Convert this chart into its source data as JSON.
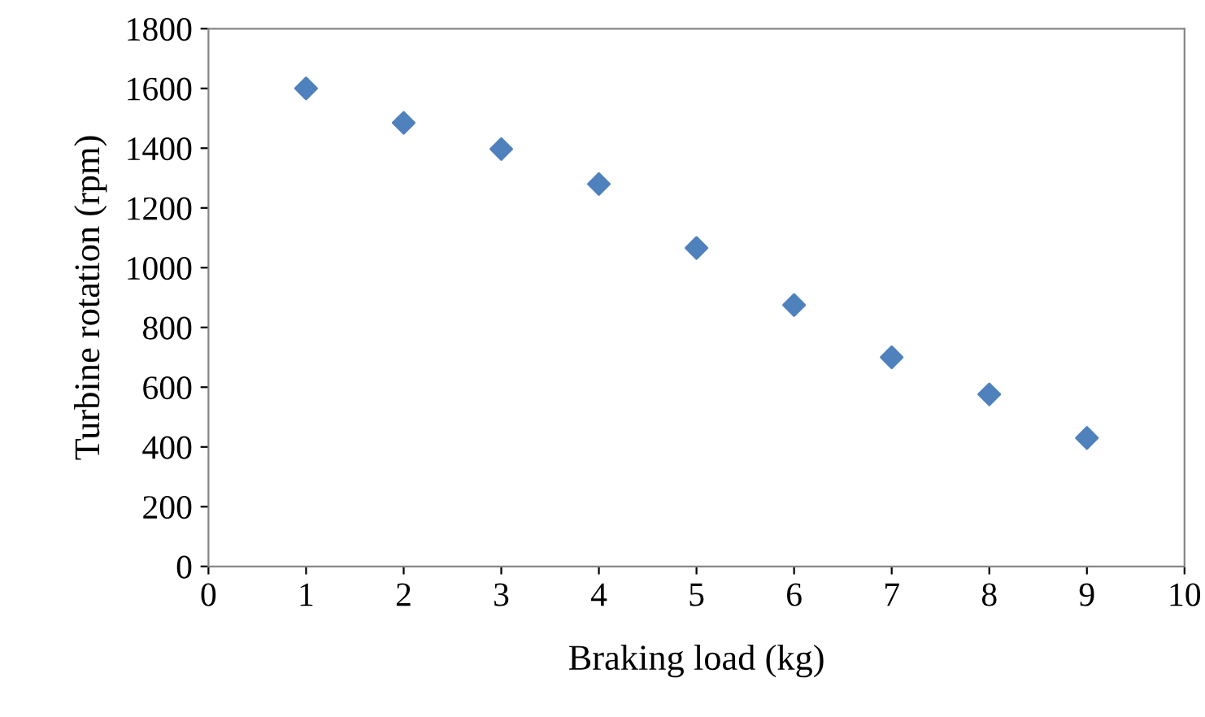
{
  "chart_data": {
    "type": "scatter",
    "xlabel": "Braking load (kg)",
    "ylabel": "Turbine rotation (rpm)",
    "x": [
      1,
      2,
      3,
      4,
      5,
      6,
      7,
      8,
      9
    ],
    "series": [
      {
        "color": "#4f81bd",
        "values": [
          1600,
          1485,
          1397,
          1280,
          1066,
          875,
          700,
          576,
          430
        ]
      }
    ],
    "xlim": [
      0,
      10
    ],
    "xticks": [
      0,
      1,
      2,
      3,
      4,
      5,
      6,
      7,
      8,
      9,
      10
    ],
    "ylim": [
      0,
      1800
    ],
    "yticks": [
      0,
      200,
      400,
      600,
      800,
      1000,
      1200,
      1400,
      1600,
      1800
    ],
    "marker": "diamond",
    "grid": false,
    "legend": false
  }
}
